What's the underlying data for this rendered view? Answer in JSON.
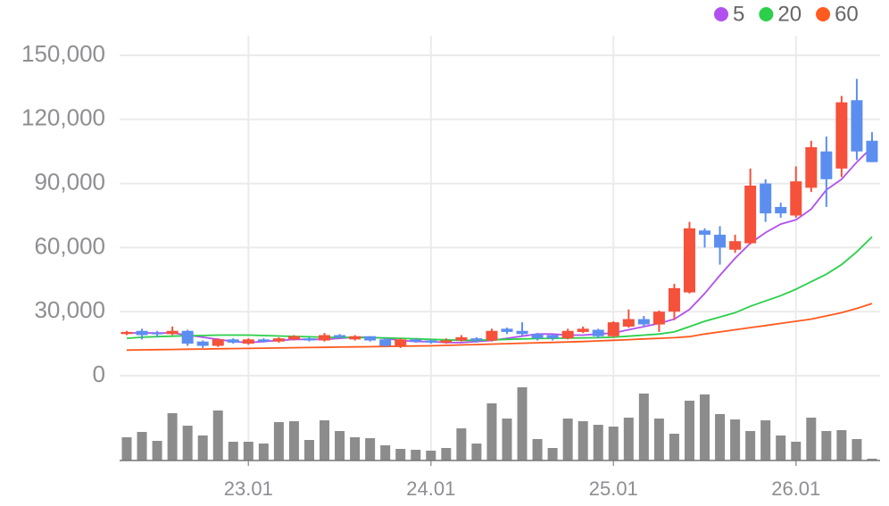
{
  "chart_data": {
    "type": "candlestick",
    "categories": [
      null,
      null,
      null,
      null,
      null,
      null,
      null,
      null,
      "23.01",
      null,
      null,
      null,
      null,
      null,
      null,
      null,
      null,
      null,
      null,
      null,
      "24.01",
      null,
      null,
      null,
      null,
      null,
      null,
      null,
      null,
      null,
      null,
      null,
      "25.01",
      null,
      null,
      null,
      null,
      null,
      null,
      null,
      null,
      null,
      null,
      null,
      "26.01",
      null,
      null,
      null,
      null,
      null
    ],
    "open": [
      19500,
      21000,
      20000,
      19500,
      21000,
      16000,
      14000,
      17000,
      15000,
      17000,
      16000,
      17000,
      17500,
      16500,
      19000,
      17000,
      18500,
      17000,
      14000,
      17000,
      16500,
      15500,
      16500,
      17500,
      16500,
      22000,
      21000,
      19500,
      19000,
      17500,
      20500,
      21500,
      18500,
      23000,
      26500,
      24000,
      30000,
      39000,
      68000,
      66000,
      59000,
      62000,
      90000,
      79000,
      75000,
      88000,
      105000,
      97000,
      129000,
      110000
    ],
    "high": [
      21000,
      22000,
      21000,
      23000,
      21500,
      16500,
      17500,
      17500,
      17500,
      17500,
      18000,
      19000,
      18000,
      20000,
      19500,
      19000,
      18500,
      17500,
      17500,
      17500,
      17000,
      17500,
      19000,
      18000,
      22000,
      22500,
      25000,
      20000,
      19500,
      22000,
      23000,
      22000,
      25500,
      31000,
      28000,
      30500,
      43000,
      72000,
      69000,
      70000,
      66000,
      97000,
      92000,
      81000,
      98000,
      110000,
      112000,
      131000,
      139000,
      114000
    ],
    "low": [
      19000,
      17000,
      18000,
      19000,
      14000,
      13000,
      13500,
      15000,
      14500,
      15500,
      15500,
      16500,
      16000,
      16000,
      17500,
      16500,
      16000,
      13500,
      13000,
      15500,
      15000,
      15000,
      16000,
      15500,
      16000,
      19500,
      18500,
      16500,
      16500,
      17000,
      20000,
      17500,
      18000,
      22500,
      23000,
      20500,
      26000,
      38500,
      60000,
      52000,
      57500,
      61500,
      72000,
      74000,
      74000,
      86000,
      79000,
      93000,
      101000,
      100000
    ],
    "close": [
      20500,
      19000,
      19500,
      21000,
      15000,
      14000,
      17000,
      15500,
      17000,
      16000,
      17500,
      18500,
      16500,
      19000,
      18000,
      18500,
      16500,
      14000,
      17000,
      16000,
      15500,
      16500,
      18000,
      16500,
      21000,
      20500,
      19500,
      17500,
      17500,
      21000,
      22000,
      18500,
      25000,
      26500,
      24000,
      30000,
      41000,
      69000,
      66000,
      60000,
      63000,
      89000,
      76000,
      76000,
      91000,
      107000,
      92000,
      128000,
      105000,
      100000
    ],
    "up_color": "#f5513b",
    "down_color": "#5c8ef0",
    "ylim": [
      0,
      150000
    ],
    "yticks": [
      0,
      {
        "value": 30000,
        "label": "30,000"
      },
      {
        "value": 60000,
        "label": "60,000"
      },
      {
        "value": 90000,
        "label": "90,000"
      },
      {
        "value": 120000,
        "label": "120,000"
      },
      {
        "value": 150000,
        "label": "150,000"
      }
    ],
    "grid": true,
    "legend": "top-right",
    "moving_averages": [
      {
        "name": "5",
        "color": "#b150ef",
        "values": [
          20000,
          20000,
          20000,
          20000,
          19000,
          18000,
          17000,
          16000,
          15500,
          16000,
          16500,
          17000,
          17000,
          17000,
          17500,
          18000,
          18000,
          17500,
          16500,
          16000,
          16000,
          15500,
          15500,
          16000,
          16500,
          17500,
          18500,
          19500,
          19500,
          19000,
          19000,
          19500,
          20000,
          21500,
          23000,
          24500,
          26500,
          31000,
          38500,
          47000,
          55000,
          62000,
          67000,
          71000,
          73000,
          78000,
          87000,
          92000,
          100000,
          107000
        ]
      },
      {
        "name": "20",
        "color": "#2bcf4a",
        "values": [
          17500,
          18000,
          18300,
          18500,
          18700,
          18800,
          19000,
          19000,
          19000,
          18800,
          18600,
          18400,
          18200,
          18000,
          18000,
          17900,
          17800,
          17700,
          17500,
          17300,
          17000,
          16800,
          16600,
          16600,
          16800,
          17000,
          17200,
          17400,
          17500,
          17600,
          17700,
          17800,
          18000,
          18500,
          19000,
          19500,
          20500,
          23000,
          25500,
          27500,
          29500,
          32500,
          35000,
          37500,
          40500,
          44000,
          47500,
          52000,
          58000,
          65000
        ]
      },
      {
        "name": "60",
        "color": "#ff5a1f",
        "values": [
          12000,
          12100,
          12200,
          12300,
          12400,
          12500,
          12600,
          12700,
          12800,
          12900,
          13000,
          13100,
          13200,
          13300,
          13400,
          13500,
          13600,
          13700,
          13800,
          13900,
          14000,
          14200,
          14400,
          14600,
          14800,
          15000,
          15200,
          15400,
          15600,
          15800,
          16000,
          16300,
          16600,
          16900,
          17200,
          17500,
          17800,
          18300,
          19500,
          20500,
          21500,
          22500,
          23500,
          24500,
          25500,
          26500,
          28000,
          29500,
          31500,
          33800
        ]
      }
    ],
    "volume": {
      "color": "#8c8c8c",
      "values": [
        26,
        32,
        22,
        53,
        39,
        28,
        56,
        21,
        21,
        19,
        43,
        44,
        23,
        45,
        33,
        26,
        25,
        17,
        13,
        12,
        11,
        14,
        36,
        19,
        64,
        47,
        82,
        24,
        14,
        47,
        44,
        40,
        38,
        48,
        75,
        47,
        30,
        67,
        74,
        52,
        46,
        33,
        45,
        28,
        21,
        48,
        33,
        34,
        24,
        2
      ]
    }
  }
}
